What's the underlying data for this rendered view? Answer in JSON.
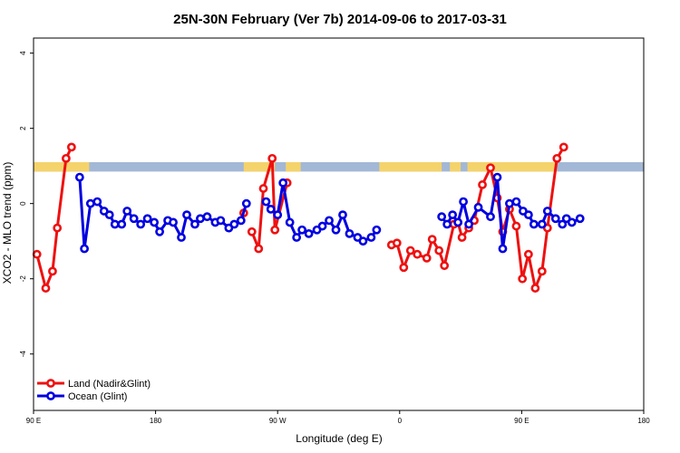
{
  "chart_data": {
    "type": "line",
    "title": "25N-30N February (Ver 7b)   2014-09-06 to 2017-03-31",
    "xlabel": "Longitude (deg E)",
    "ylabel": "XCO2 - MLO trend (ppm)",
    "xlim": [
      90,
      540
    ],
    "ylim": [
      -5.5,
      4.4
    ],
    "x_ticks": [
      {
        "value": 90,
        "label": "90 E"
      },
      {
        "value": 180,
        "label": "180"
      },
      {
        "value": 270,
        "label": "90 W"
      },
      {
        "value": 360,
        "label": "0"
      },
      {
        "value": 450,
        "label": "90 E"
      },
      {
        "value": 540,
        "label": "180"
      }
    ],
    "y_ticks": [
      {
        "value": -4,
        "label": "-4"
      },
      {
        "value": -2,
        "label": "-2"
      },
      {
        "value": 0,
        "label": "0"
      },
      {
        "value": 2,
        "label": "2"
      },
      {
        "value": 4,
        "label": "4"
      }
    ],
    "legend": {
      "placement": "bottom-left"
    },
    "band": {
      "y_range": [
        0.85,
        1.1
      ],
      "land_color": "#f5d36b",
      "ocean_color": "#a3b8d6",
      "land_segments": [
        [
          90,
          131
        ],
        [
          245,
          268
        ],
        [
          276,
          287
        ],
        [
          345,
          391
        ],
        [
          397,
          405
        ],
        [
          410,
          476
        ]
      ]
    },
    "series": [
      {
        "name": "Land (Nadir&Glint)",
        "color": "#ee1111",
        "segments": [
          {
            "x": [
              92.5,
              99,
              104,
              107.5,
              114,
              118
            ],
            "y": [
              -1.35,
              -2.25,
              -1.8,
              -0.65,
              1.2,
              1.5
            ]
          },
          {
            "x": [
              245
            ],
            "y": [
              -0.25
            ]
          },
          {
            "x": [
              251,
              256,
              259.5,
              266,
              268,
              277
            ],
            "y": [
              -0.75,
              -1.2,
              0.4,
              1.2,
              -0.7,
              0.55
            ]
          },
          {
            "x": [
              354,
              358,
              363,
              368,
              373,
              380,
              384,
              389,
              393,
              400,
              403,
              406,
              411,
              415,
              421,
              427,
              432,
              436,
              441,
              446,
              450.5,
              455,
              460,
              465,
              469,
              476,
              481
            ],
            "y": [
              -1.1,
              -1.05,
              -1.7,
              -1.25,
              -1.35,
              -1.45,
              -0.95,
              -1.25,
              -1.65,
              -0.55,
              -0.5,
              -0.9,
              -0.65,
              -0.45,
              0.5,
              0.95,
              0.15,
              -0.75,
              -0.15,
              -0.6,
              -2.0,
              -1.35,
              -2.25,
              -1.8,
              -0.65,
              1.2,
              1.5
            ]
          }
        ]
      },
      {
        "name": "Ocean (Glint)",
        "color": "#0000e0",
        "segments": [
          {
            "x": [
              124,
              127.5,
              132,
              137,
              142,
              146,
              150,
              155,
              159,
              164,
              169,
              174,
              179,
              183,
              189,
              193,
              199,
              203,
              209,
              213,
              218,
              224,
              228,
              234,
              238,
              243,
              247
            ],
            "y": [
              0.7,
              -1.2,
              0.0,
              0.05,
              -0.2,
              -0.3,
              -0.55,
              -0.55,
              -0.2,
              -0.4,
              -0.55,
              -0.4,
              -0.5,
              -0.75,
              -0.45,
              -0.5,
              -0.9,
              -0.3,
              -0.55,
              -0.4,
              -0.35,
              -0.5,
              -0.45,
              -0.65,
              -0.55,
              -0.45,
              0.0
            ]
          },
          {
            "x": [
              261.5,
              265,
              270,
              274,
              279,
              284,
              288,
              293,
              299,
              303,
              308,
              313,
              318,
              323,
              329,
              333,
              339,
              343
            ],
            "y": [
              0.05,
              -0.15,
              -0.3,
              0.55,
              -0.5,
              -0.9,
              -0.7,
              -0.8,
              -0.7,
              -0.6,
              -0.45,
              -0.7,
              -0.3,
              -0.8,
              -0.9,
              -1.0,
              -0.9,
              -0.7
            ]
          },
          {
            "x": [
              391,
              395,
              399,
              403,
              407,
              411,
              418,
              427,
              432,
              436,
              441,
              446,
              451,
              455,
              459,
              465,
              469,
              475,
              480,
              483,
              487,
              493
            ],
            "y": [
              -0.35,
              -0.55,
              -0.3,
              -0.5,
              0.05,
              -0.55,
              -0.1,
              -0.35,
              0.7,
              -1.2,
              0.0,
              0.05,
              -0.2,
              -0.3,
              -0.55,
              -0.55,
              -0.2,
              -0.4,
              -0.55,
              -0.4,
              -0.5,
              -0.4
            ]
          }
        ]
      }
    ]
  }
}
